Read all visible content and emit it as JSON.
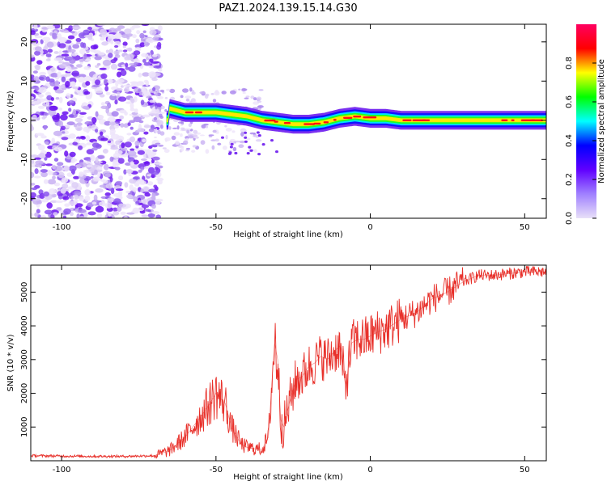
{
  "chart_data": [
    {
      "type": "heatmap",
      "title": "PAZ1.2024.139.15.14.G30",
      "xlabel": "Height of straight line (km)",
      "ylabel": "Frequency (Hz)",
      "xlim": [
        -110,
        57
      ],
      "ylim": [
        -25,
        24.5
      ],
      "xticks": [
        -100,
        -50,
        0,
        50
      ],
      "yticks": [
        -20,
        -10,
        0,
        10,
        20
      ],
      "colorbar": {
        "label": "Normalized spectral amplitude",
        "range": [
          0.0,
          1.0
        ],
        "ticks": [
          0.0,
          0.2,
          0.4,
          0.6,
          0.8
        ],
        "colormap": [
          "#e8e0f8",
          "#a080ff",
          "#6000ff",
          "#0000ff",
          "#00ffff",
          "#00ff00",
          "#ffff00",
          "#ff0000",
          "#ff0060"
        ]
      },
      "ridge": {
        "x": [
          -65,
          -60,
          -55,
          -50,
          -45,
          -40,
          -35,
          -30,
          -25,
          -20,
          -15,
          -10,
          -5,
          0,
          5,
          10,
          15,
          20,
          25,
          30,
          35,
          40,
          45,
          50,
          55
        ],
        "y": [
          3,
          2,
          2,
          2,
          1.5,
          1,
          0,
          -0.5,
          -1,
          -1,
          -0.5,
          0.5,
          1,
          0.5,
          0.5,
          0,
          0,
          0,
          0,
          0,
          0,
          0,
          0,
          0,
          0
        ]
      },
      "noise_region_x": [
        -110,
        -68
      ]
    },
    {
      "type": "line",
      "xlabel": "Height of straight line (km)",
      "ylabel": "SNR (10 * v/v)",
      "xlim": [
        -110,
        57
      ],
      "ylim": [
        0,
        5800
      ],
      "xticks": [
        -100,
        -50,
        0,
        50
      ],
      "yticks": [
        1000,
        2000,
        3000,
        4000,
        5000
      ],
      "line_color": "#e8302a",
      "x": [
        -110,
        -100,
        -90,
        -80,
        -70,
        -65,
        -60,
        -55,
        -52,
        -50,
        -47,
        -45,
        -42,
        -40,
        -37,
        -35,
        -33,
        -32,
        -31,
        -30,
        -29,
        -28,
        -26,
        -24,
        -22,
        -20,
        -18,
        -16,
        -14,
        -12,
        -10,
        -8,
        -6,
        -4,
        -2,
        0,
        2,
        5,
        10,
        15,
        20,
        25,
        30,
        35,
        40,
        45,
        50,
        55,
        57
      ],
      "y": [
        150,
        140,
        130,
        130,
        150,
        300,
        700,
        1300,
        1700,
        2000,
        1700,
        1000,
        500,
        400,
        350,
        350,
        700,
        2200,
        3500,
        3000,
        1200,
        1000,
        1800,
        2400,
        2500,
        2800,
        2900,
        3100,
        3000,
        3200,
        3400,
        2200,
        3500,
        3600,
        3600,
        3700,
        3800,
        3900,
        4200,
        4400,
        4800,
        5000,
        5300,
        5500,
        5500,
        5550,
        5600,
        5600,
        5600
      ]
    }
  ]
}
